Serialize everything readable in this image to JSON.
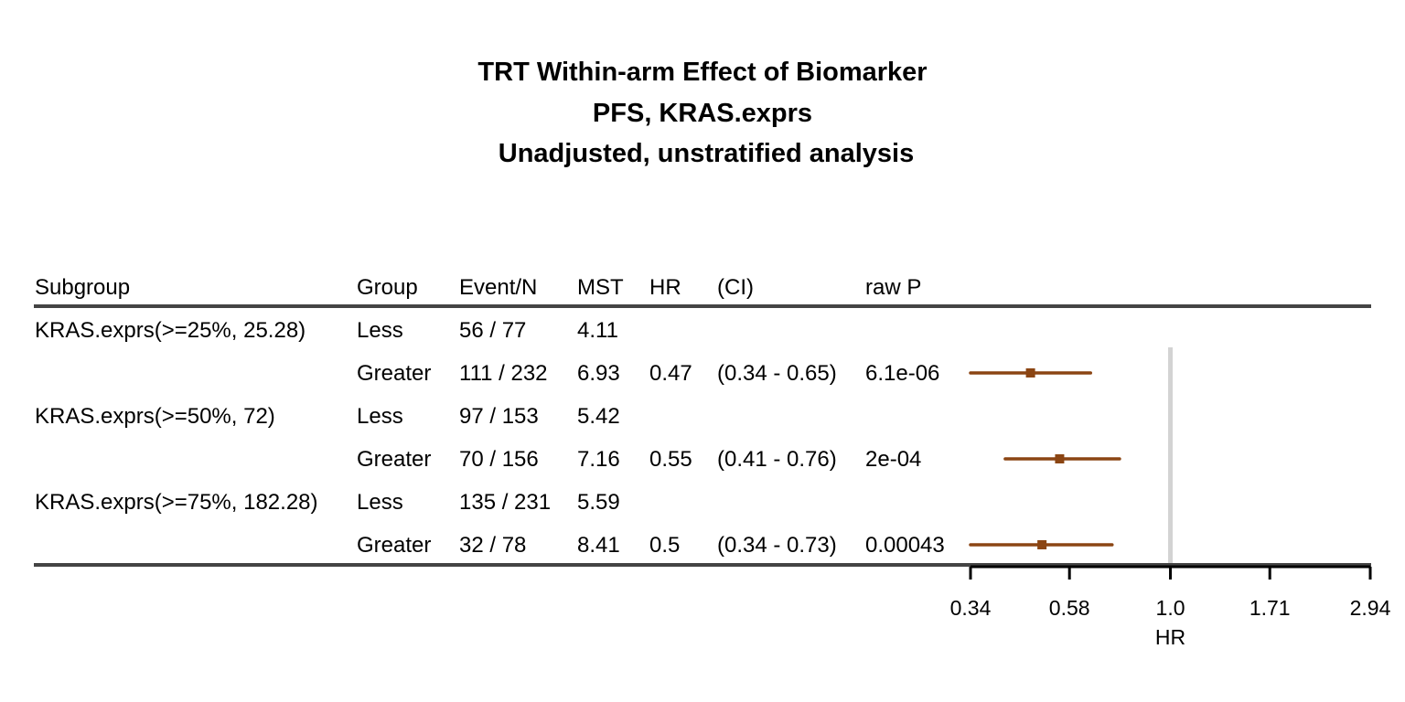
{
  "chart_data": {
    "type": "forest",
    "title": [
      "TRT Within-arm Effect of Biomarker",
      "PFS, KRAS.exprs",
      "Unadjusted, unstratified analysis"
    ],
    "columns": [
      "Subgroup",
      "Group",
      "Event/N",
      "MST",
      "HR",
      "(CI)",
      "raw P"
    ],
    "rows": [
      {
        "subgroup": "KRAS.exprs(>=25%, 25.28)",
        "group": "Less",
        "events_n": "56 / 77",
        "mst": "4.11",
        "hr": "",
        "ci": "",
        "p": ""
      },
      {
        "subgroup": "",
        "group": "Greater",
        "events_n": "111 / 232",
        "mst": "6.93",
        "hr": "0.47",
        "ci": "(0.34 - 0.65)",
        "p": "6.1e-06",
        "hr_value": 0.47,
        "ci_low": 0.34,
        "ci_high": 0.65
      },
      {
        "subgroup": "KRAS.exprs(>=50%, 72)",
        "group": "Less",
        "events_n": "97 / 153",
        "mst": "5.42",
        "hr": "",
        "ci": "",
        "p": ""
      },
      {
        "subgroup": "",
        "group": "Greater",
        "events_n": "70 / 156",
        "mst": "7.16",
        "hr": "0.55",
        "ci": "(0.41 - 0.76)",
        "p": "2e-04",
        "hr_value": 0.55,
        "ci_low": 0.41,
        "ci_high": 0.76
      },
      {
        "subgroup": "KRAS.exprs(>=75%, 182.28)",
        "group": "Less",
        "events_n": "135 / 231",
        "mst": "5.59",
        "hr": "",
        "ci": "",
        "p": ""
      },
      {
        "subgroup": "",
        "group": "Greater",
        "events_n": "32 / 78",
        "mst": "8.41",
        "hr": "0.5",
        "ci": "(0.34 - 0.73)",
        "p": "0.00043",
        "hr_value": 0.5,
        "ci_low": 0.34,
        "ci_high": 0.73
      }
    ],
    "x_axis": {
      "label": "HR",
      "scale": "log",
      "range": [
        0.34,
        2.94
      ],
      "ticks": [
        {
          "value": 0.34,
          "label": "0.34"
        },
        {
          "value": 0.58,
          "label": "0.58"
        },
        {
          "value": 1.0,
          "label": "1.0"
        },
        {
          "value": 1.71,
          "label": "1.71"
        },
        {
          "value": 2.94,
          "label": "2.94"
        }
      ]
    },
    "reference_line": 1.0,
    "colors": {
      "marker": "#8B4513",
      "reference": "#d3d3d3",
      "rule": "#444444"
    }
  }
}
